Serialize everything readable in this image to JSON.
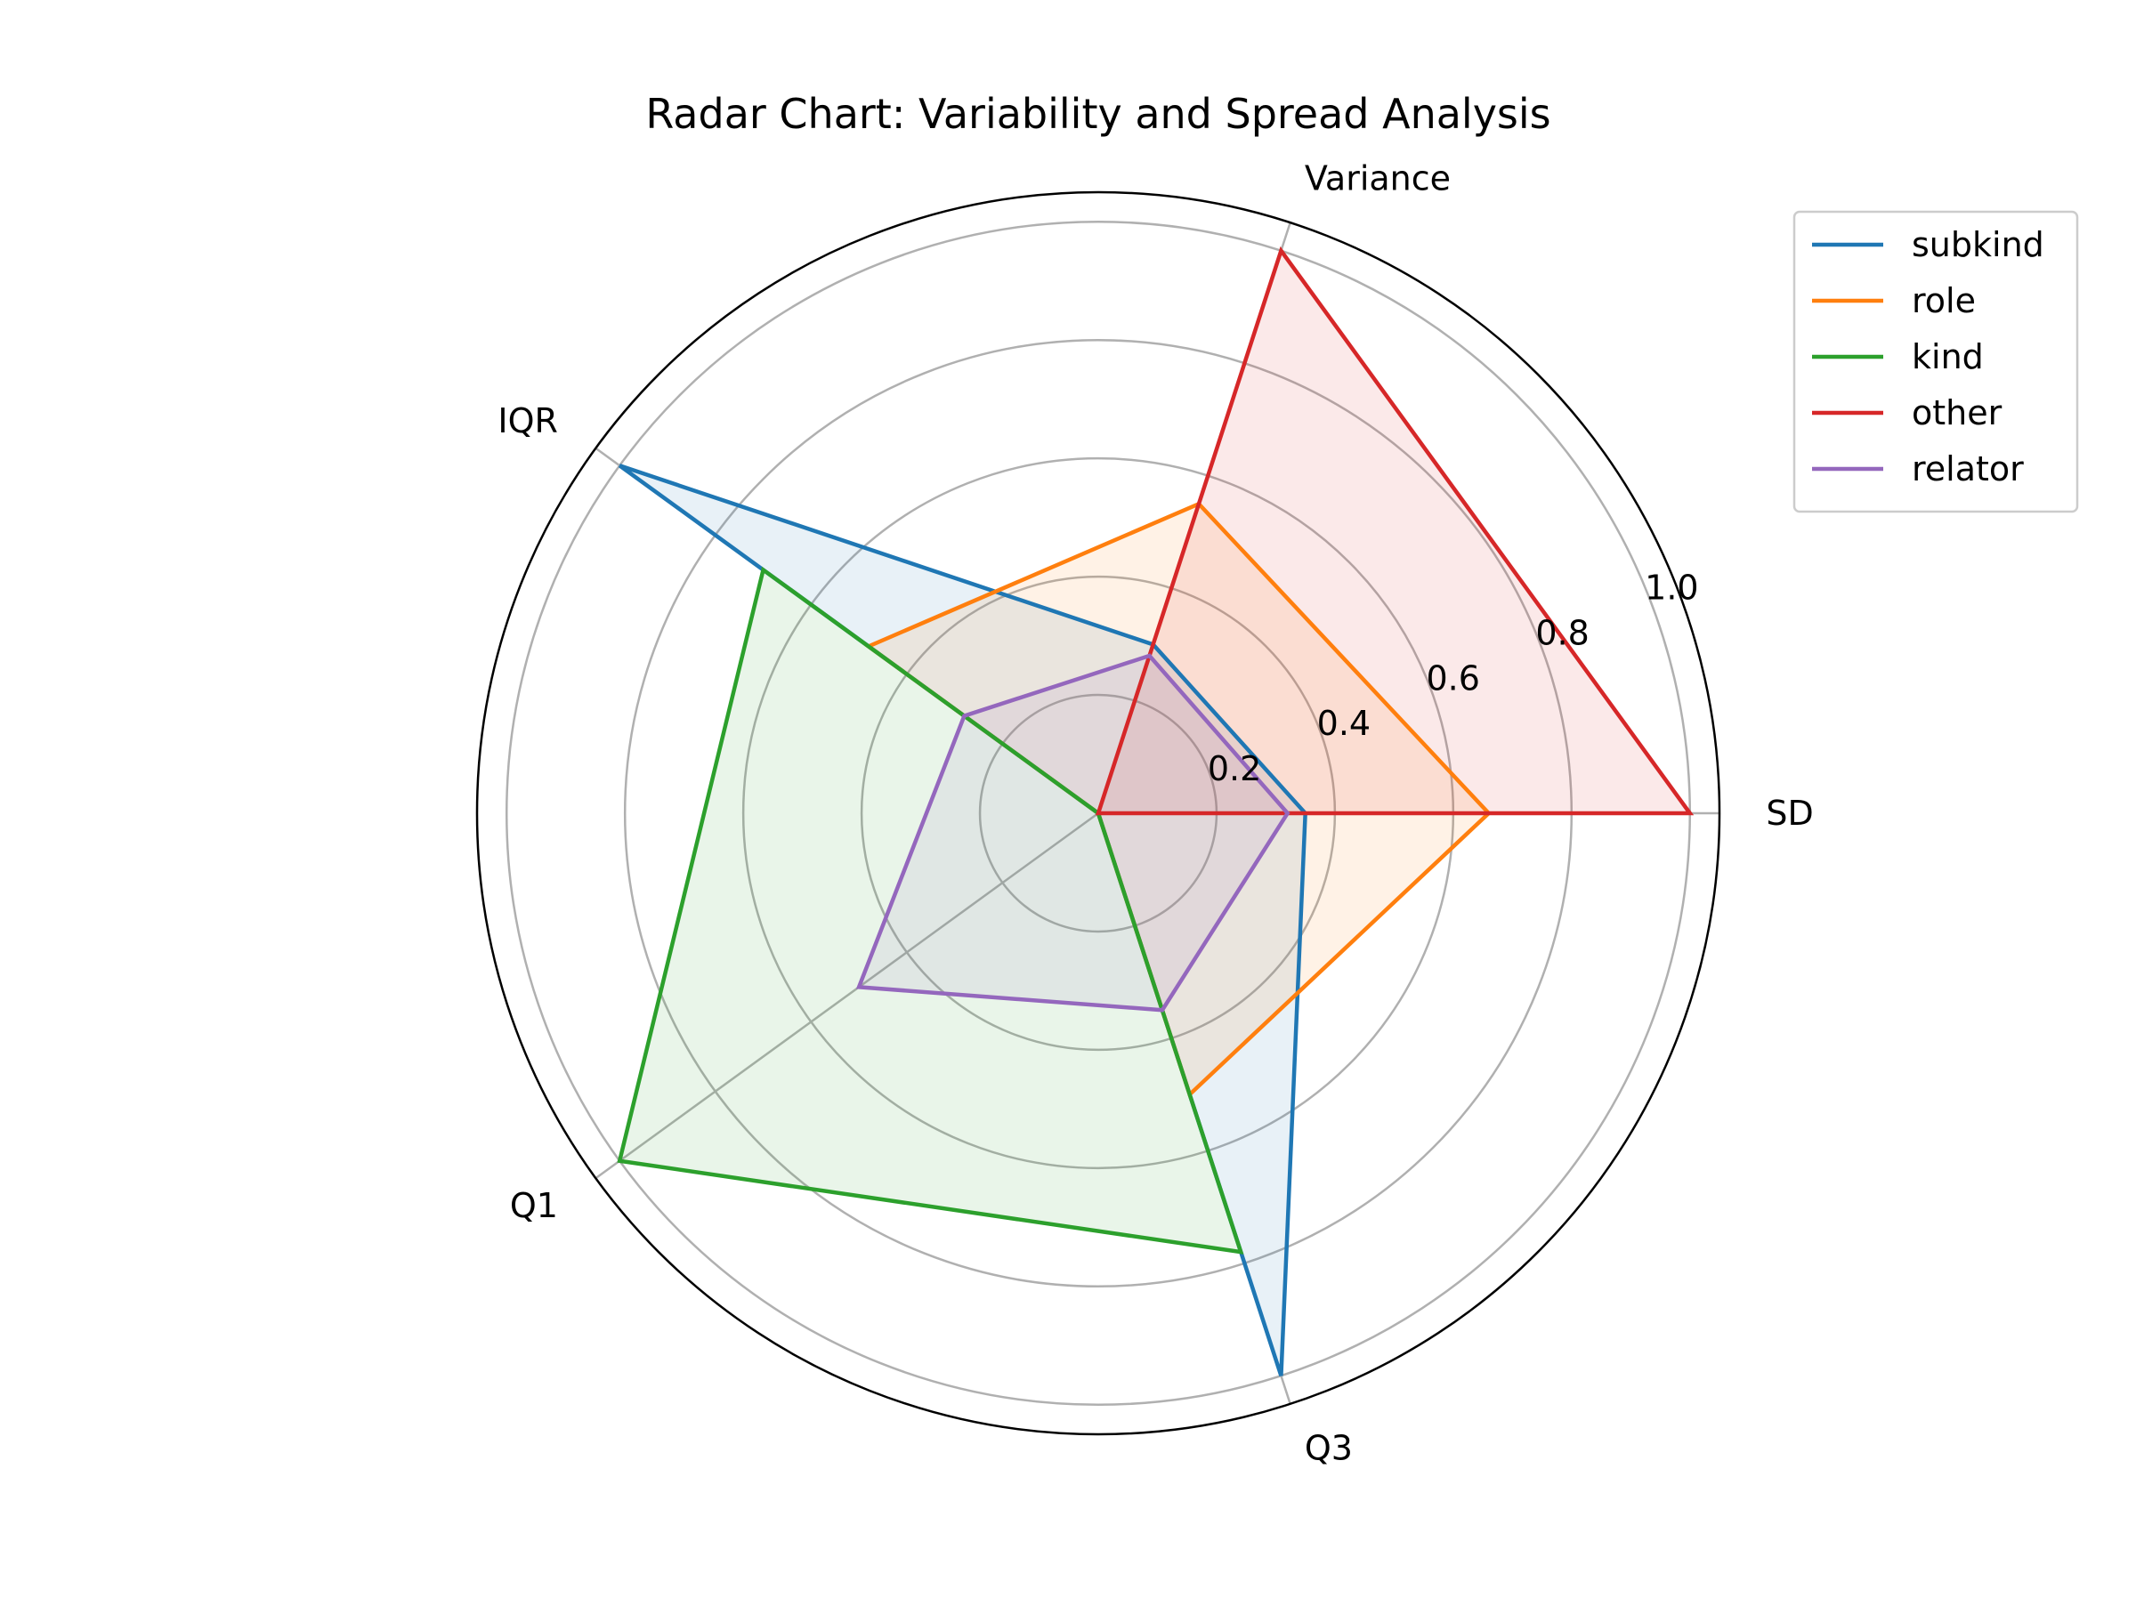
{
  "chart_data": {
    "type": "radar",
    "title": "Radar Chart: Variability and Spread Analysis",
    "axes": [
      "SD",
      "Variance",
      "IQR",
      "Q1",
      "Q3"
    ],
    "rlim": [
      0,
      1.05
    ],
    "rticks": [
      0.2,
      0.4,
      0.6,
      0.8,
      1.0
    ],
    "rtick_labels": [
      "0.2",
      "0.4",
      "0.6",
      "0.8",
      "1.0"
    ],
    "grid": true,
    "legend_position": "top-right outside",
    "series": [
      {
        "name": "subkind",
        "color": "#1f77b4",
        "values": [
          0.35,
          0.3,
          1.0,
          0.0,
          1.0
        ]
      },
      {
        "name": "role",
        "color": "#ff7f0e",
        "values": [
          0.66,
          0.55,
          0.48,
          0.0,
          0.5
        ]
      },
      {
        "name": "kind",
        "color": "#2ca02c",
        "values": [
          0.0,
          0.0,
          0.7,
          1.0,
          0.78
        ]
      },
      {
        "name": "other",
        "color": "#d62728",
        "values": [
          1.0,
          1.0,
          0.0,
          0.0,
          0.0
        ]
      },
      {
        "name": "relator",
        "color": "#9467bd",
        "values": [
          0.32,
          0.28,
          0.28,
          0.5,
          0.35
        ]
      }
    ]
  }
}
